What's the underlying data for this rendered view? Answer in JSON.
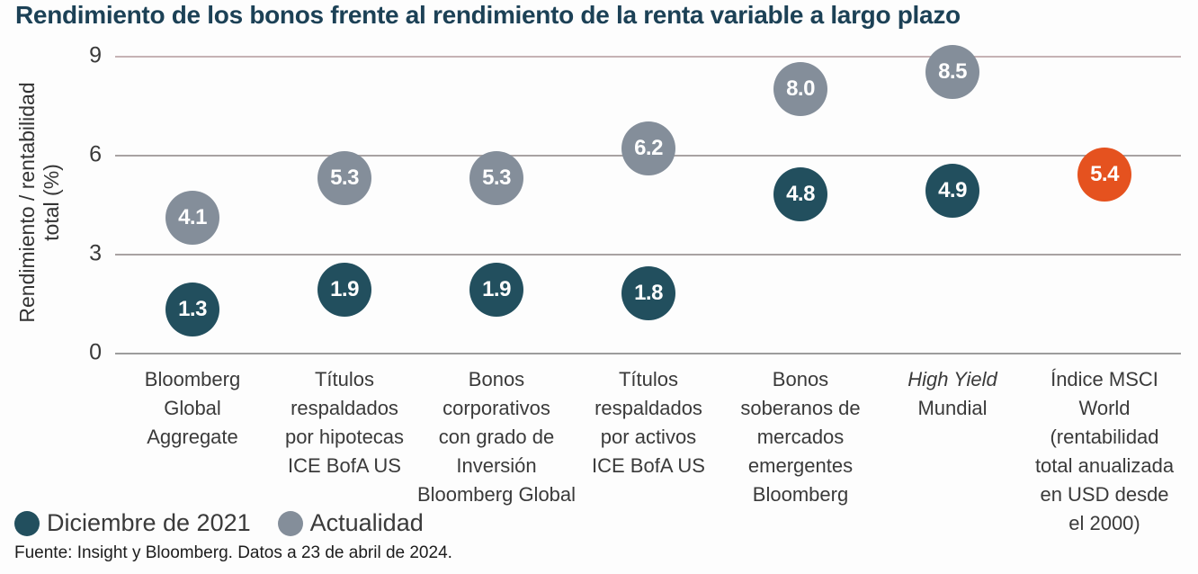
{
  "title": "Rendimiento de los bonos frente al rendimiento de la renta variable a largo plazo",
  "y_axis": {
    "label_line1": "Rendimiento / rentabilidad",
    "label_line2": "total (%)"
  },
  "legend": [
    {
      "label": "Diciembre de 2021",
      "color": "#224f5e"
    },
    {
      "label": "Actualidad",
      "color": "#848e9a"
    }
  ],
  "source": "Fuente: Insight y Bloomberg. Datos a 23 de abril de 2024.",
  "colors": {
    "title": "#1c4156",
    "dec2021": "#224f5e",
    "actualidad": "#848e9a",
    "highlight": "#e5521f",
    "gridline": "#a8a2a2",
    "text": "#3a3a3a"
  },
  "chart_data": {
    "type": "scatter",
    "title": "Rendimiento de los bonos frente al rendimiento de la renta variable a largo plazo",
    "ylabel": "Rendimiento / rentabilidad total (%)",
    "ylim": [
      0,
      9
    ],
    "yticks": [
      0,
      3,
      6,
      9
    ],
    "grid": "horizontal",
    "legend_position": "bottom-left",
    "categories": [
      {
        "label": "Bloomberg Global Aggregate",
        "lines": [
          "Bloomberg",
          "Global",
          "Aggregate"
        ]
      },
      {
        "label": "Títulos respaldados por hipotecas ICE BofA US",
        "lines": [
          "Títulos",
          "respaldados",
          "por hipotecas",
          "ICE BofA US"
        ]
      },
      {
        "label": "Bonos corporativos con grado de Inversión Bloomberg Global",
        "lines": [
          "Bonos",
          "corporativos",
          "con grado de",
          "Inversión",
          "Bloomberg Global"
        ]
      },
      {
        "label": "Títulos respaldados por activos ICE BofA US",
        "lines": [
          "Títulos",
          "respaldados",
          "por activos",
          "ICE BofA US"
        ]
      },
      {
        "label": "Bonos soberanos de mercados emergentes Bloomberg",
        "lines": [
          "Bonos",
          "soberanos de",
          "mercados",
          "emergentes",
          "Bloomberg"
        ]
      },
      {
        "label": "High Yield Mundial",
        "lines": [
          "High Yield",
          "Mundial"
        ],
        "italic_lines": [
          0
        ]
      },
      {
        "label": "Índice MSCI World (rentabilidad total anualizada en USD desde el 2000)",
        "lines": [
          "Índice MSCI",
          "World",
          "(rentabilidad",
          "total anualizada",
          "en USD desde",
          "el 2000)"
        ]
      }
    ],
    "series": [
      {
        "name": "Diciembre de 2021",
        "color": "#224f5e",
        "in_legend": true,
        "values": [
          1.3,
          1.9,
          1.9,
          1.8,
          4.8,
          4.9,
          null
        ]
      },
      {
        "name": "Actualidad",
        "color": "#848e9a",
        "in_legend": true,
        "values": [
          4.1,
          5.3,
          5.3,
          6.2,
          8.0,
          8.5,
          null
        ]
      },
      {
        "name": "Índice MSCI World (rentabilidad total anualizada en USD desde el 2000)",
        "color": "#e5521f",
        "in_legend": false,
        "values": [
          null,
          null,
          null,
          null,
          null,
          null,
          5.4
        ]
      }
    ]
  }
}
